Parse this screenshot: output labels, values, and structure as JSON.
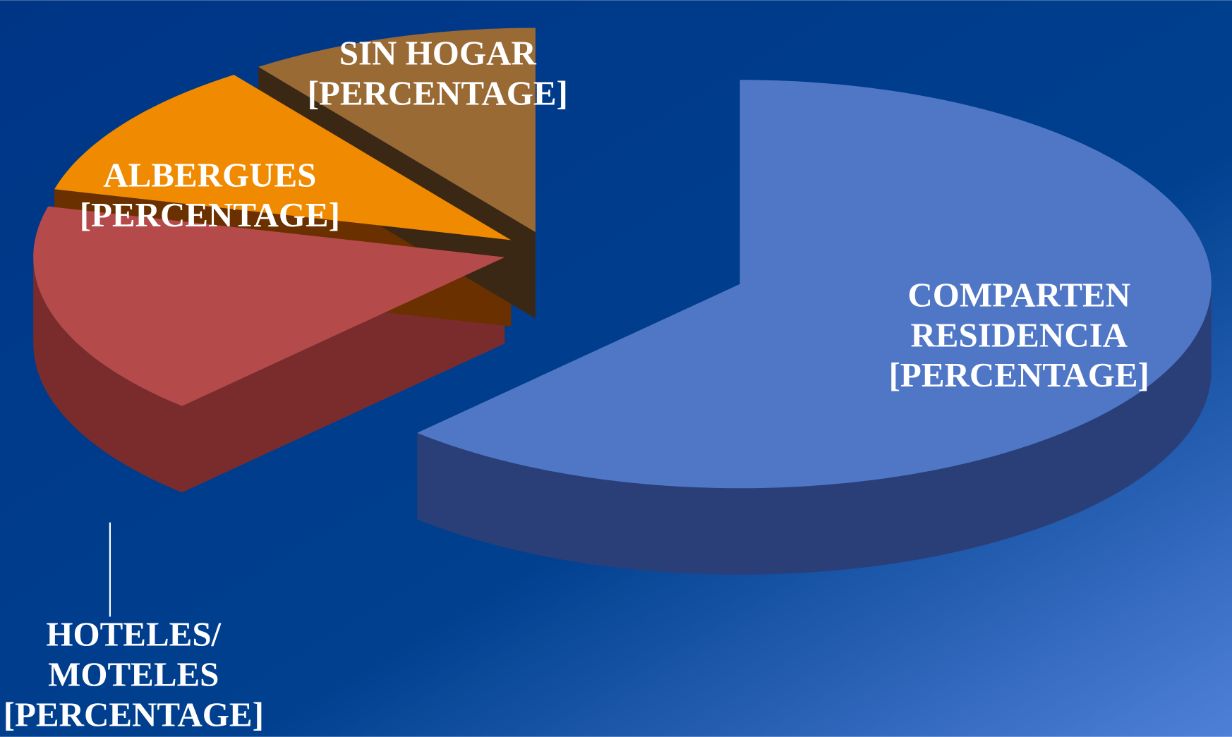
{
  "chart_data": {
    "type": "pie3d",
    "categories": [
      [
        "COMPARTEN",
        "RESIDENCIA"
      ],
      [
        "HOTELES/",
        "MOTELES"
      ],
      [
        "ALBERGUES"
      ],
      [
        "SIN HOGAR"
      ]
    ],
    "values": [
      62,
      17,
      11,
      10
    ],
    "value_labels": [
      "[PERCENTAGE]",
      "[PERCENTAGE]",
      "[PERCENTAGE]",
      "[PERCENTAGE]"
    ],
    "colors": [
      "#5077c6",
      "#b54a4a",
      "#f08a00",
      "#9a6a35"
    ],
    "side_colors": [
      "#2a3f78",
      "#7a2c2c",
      "#6a3000",
      "#3b2814"
    ]
  }
}
